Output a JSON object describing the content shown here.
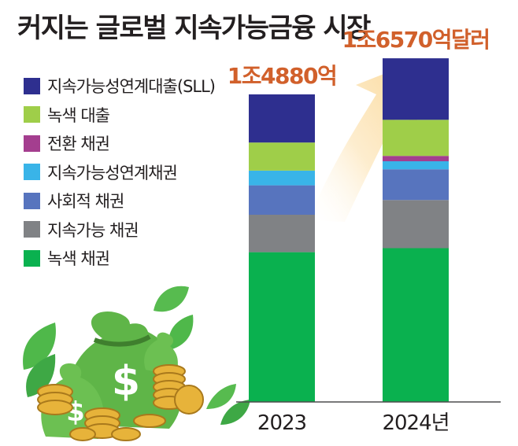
{
  "title": "커지는 글로벌 지속가능금융 시장",
  "chart_data": {
    "type": "bar",
    "stacked": true,
    "categories": [
      "2023",
      "2024년"
    ],
    "totals": [
      "1조4880억",
      "1조6570억달러"
    ],
    "series": [
      {
        "name": "녹색 채권",
        "color": "#0ab14f",
        "values": [
          0.56,
          0.575
        ]
      },
      {
        "name": "지속가능 채권",
        "color": "#808285",
        "values": [
          0.14,
          0.18
        ]
      },
      {
        "name": "사회적 채권",
        "color": "#5774be",
        "values": [
          0.11,
          0.115
        ]
      },
      {
        "name": "지속가능성연계채권",
        "color": "#39b4e8",
        "values": [
          0.055,
          0.03
        ]
      },
      {
        "name": "전환 채권",
        "color": "#a43e8f",
        "values": [
          0.0,
          0.02
        ]
      },
      {
        "name": "녹색 대출",
        "color": "#9fce49",
        "values": [
          0.105,
          0.135
        ]
      },
      {
        "name": "지속가능성연계대출(SLL)",
        "color": "#2e2f8f",
        "values": [
          0.18,
          0.23
        ]
      }
    ],
    "legend_order": [
      "지속가능성연계대출(SLL)",
      "녹색 대출",
      "전환 채권",
      "지속가능성연계채권",
      "사회적 채권",
      "지속가능 채권",
      "녹색 채권"
    ],
    "unit": "달러",
    "legend_position": "left",
    "grid": false
  },
  "colors": {
    "total_label": "#d1602b",
    "arrow": "#fce6bd",
    "axis": "#4d4d4f"
  },
  "illustration": "money-bags-with-coins-and-leaves"
}
